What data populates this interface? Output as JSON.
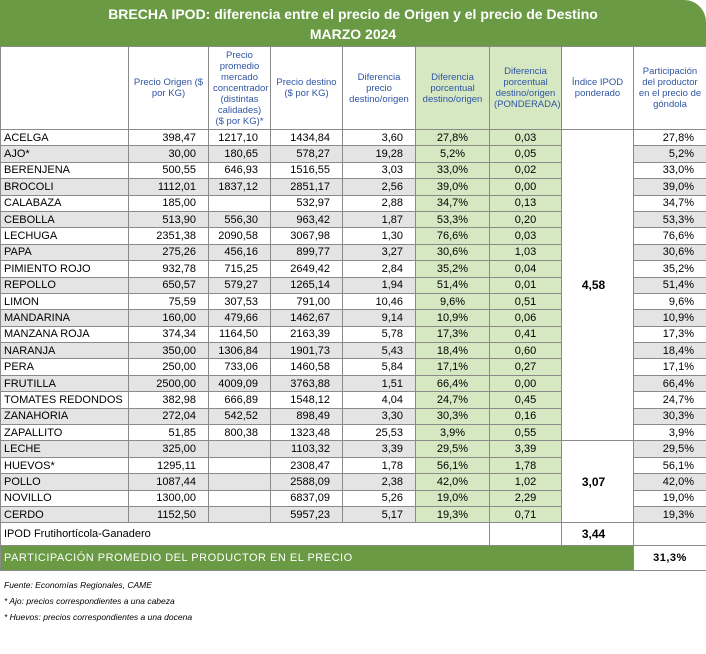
{
  "title": {
    "line1": "BRECHA IPOD: diferencia entre el precio de Origen y el precio de Destino",
    "line2": "MARZO 2024"
  },
  "headers": [
    "Precio Origen ($ por KG)",
    "Precio promedio mercado concentrador (distintas calidades) ($ por KG)*",
    "Precio destino ($ por KG)",
    "Diferencia precio destino/origen",
    "Diferencia porcentual destino/origen",
    "Diferencia porcentual destino/origen (PONDERADA)",
    "Índice IPOD ponderado",
    "Participación del productor en el precio de góndola"
  ],
  "groups": [
    {
      "index": "4,58",
      "rows": [
        {
          "name": "ACELGA",
          "values": [
            "398,47",
            "1217,10",
            "1434,84",
            "3,60",
            "27,8%",
            "0,03",
            "27,8%"
          ]
        },
        {
          "name": "AJO*",
          "values": [
            "30,00",
            "180,65",
            "578,27",
            "19,28",
            "5,2%",
            "0,05",
            "5,2%"
          ]
        },
        {
          "name": "BERENJENA",
          "values": [
            "500,55",
            "646,93",
            "1516,55",
            "3,03",
            "33,0%",
            "0,02",
            "33,0%"
          ]
        },
        {
          "name": "BROCOLI",
          "values": [
            "1112,01",
            "1837,12",
            "2851,17",
            "2,56",
            "39,0%",
            "0,00",
            "39,0%"
          ]
        },
        {
          "name": "CALABAZA",
          "values": [
            "185,00",
            null,
            "532,97",
            "2,88",
            "34,7%",
            "0,13",
            "34,7%"
          ]
        },
        {
          "name": "CEBOLLA",
          "values": [
            "513,90",
            "556,30",
            "963,42",
            "1,87",
            "53,3%",
            "0,20",
            "53,3%"
          ]
        },
        {
          "name": "LECHUGA",
          "values": [
            "2351,38",
            "2090,58",
            "3067,98",
            "1,30",
            "76,6%",
            "0,03",
            "76,6%"
          ]
        },
        {
          "name": "PAPA",
          "values": [
            "275,26",
            "456,16",
            "899,77",
            "3,27",
            "30,6%",
            "1,03",
            "30,6%"
          ]
        },
        {
          "name": "PIMIENTO ROJO",
          "values": [
            "932,78",
            "715,25",
            "2649,42",
            "2,84",
            "35,2%",
            "0,04",
            "35,2%"
          ]
        },
        {
          "name": "REPOLLO",
          "values": [
            "650,57",
            "579,27",
            "1265,14",
            "1,94",
            "51,4%",
            "0,01",
            "51,4%"
          ]
        },
        {
          "name": "LIMON",
          "values": [
            "75,59",
            "307,53",
            "791,00",
            "10,46",
            "9,6%",
            "0,51",
            "9,6%"
          ]
        },
        {
          "name": "MANDARINA",
          "values": [
            "160,00",
            "479,66",
            "1462,67",
            "9,14",
            "10,9%",
            "0,06",
            "10,9%"
          ]
        },
        {
          "name": "MANZANA ROJA",
          "values": [
            "374,34",
            "1164,50",
            "2163,39",
            "5,78",
            "17,3%",
            "0,41",
            "17,3%"
          ]
        },
        {
          "name": "NARANJA",
          "values": [
            "350,00",
            "1306,84",
            "1901,73",
            "5,43",
            "18,4%",
            "0,60",
            "18,4%"
          ]
        },
        {
          "name": "PERA",
          "values": [
            "250,00",
            "733,06",
            "1460,58",
            "5,84",
            "17,1%",
            "0,27",
            "17,1%"
          ]
        },
        {
          "name": "FRUTILLA",
          "values": [
            "2500,00",
            "4009,09",
            "3763,88",
            "1,51",
            "66,4%",
            "0,00",
            "66,4%"
          ]
        },
        {
          "name": "TOMATES REDONDOS",
          "values": [
            "382,98",
            "666,89",
            "1548,12",
            "4,04",
            "24,7%",
            "0,45",
            "24,7%"
          ]
        },
        {
          "name": "ZANAHORIA",
          "values": [
            "272,04",
            "542,52",
            "898,49",
            "3,30",
            "30,3%",
            "0,16",
            "30,3%"
          ]
        },
        {
          "name": "ZAPALLITO",
          "values": [
            "51,85",
            "800,38",
            "1323,48",
            "25,53",
            "3,9%",
            "0,55",
            "3,9%"
          ]
        }
      ]
    },
    {
      "index": "3,07",
      "rows": [
        {
          "name": "LECHE",
          "values": [
            "325,00",
            null,
            "1103,32",
            "3,39",
            "29,5%",
            "3,39",
            "29,5%"
          ]
        },
        {
          "name": "HUEVOS*",
          "values": [
            "1295,11",
            null,
            "2308,47",
            "1,78",
            "56,1%",
            "1,78",
            "56,1%"
          ]
        },
        {
          "name": "POLLO",
          "values": [
            "1087,44",
            null,
            "2588,09",
            "2,38",
            "42,0%",
            "1,02",
            "42,0%"
          ]
        },
        {
          "name": "NOVILLO",
          "values": [
            "1300,00",
            null,
            "6837,09",
            "5,26",
            "19,0%",
            "2,29",
            "19,0%"
          ]
        },
        {
          "name": "CERDO",
          "values": [
            "1152,50",
            null,
            "5957,23",
            "5,17",
            "19,3%",
            "0,71",
            "19,3%"
          ]
        }
      ]
    }
  ],
  "ipod": {
    "label": "IPOD Frutihortícola-Ganadero",
    "value": "3,44"
  },
  "participacion": {
    "label": "PARTICIPACIÓN PROMEDIO DEL PRODUCTOR EN EL PRECIO",
    "value": "31,3%"
  },
  "notes": [
    "Fuente: Economías Regionales, CAME",
    "* Ajo: precios correspondientes a una cabeza",
    "* Huevos: precios correspondientes a una docena"
  ]
}
